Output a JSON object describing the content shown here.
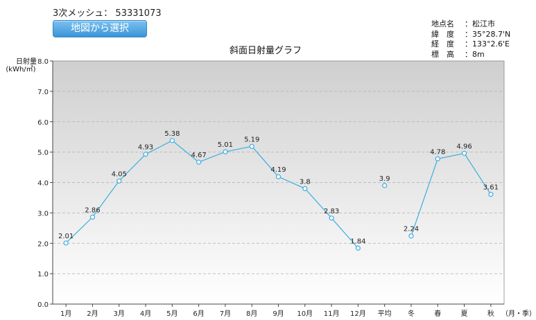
{
  "mesh": {
    "label": "3次メッシュ：",
    "code": "53331073"
  },
  "button": {
    "label": "地図から選択"
  },
  "location": [
    {
      "key": "地点名",
      "value": "松江市"
    },
    {
      "key": "緯　度",
      "value": "35°28.7'N"
    },
    {
      "key": "経　度",
      "value": "133°2.6'E"
    },
    {
      "key": "標　高",
      "value": "8m"
    }
  ],
  "colors": {
    "line": "#3aaee0",
    "grid": "#b0b0b0",
    "plot_top": "#cfcfcf",
    "plot_bottom": "#ffffff"
  },
  "chart_data": {
    "type": "line",
    "title": "斜面日射量グラフ",
    "ylabel": "日射量",
    "yunit": "(kWh/㎡)",
    "xunit": "（月・季）",
    "ylim": [
      0,
      8
    ],
    "yticks": [
      "0.0",
      "1.0",
      "2.0",
      "3.0",
      "4.0",
      "5.0",
      "6.0",
      "7.0",
      "8.0"
    ],
    "categories": [
      "1月",
      "2月",
      "3月",
      "4月",
      "5月",
      "6月",
      "7月",
      "8月",
      "9月",
      "10月",
      "11月",
      "12月",
      "平均",
      "冬",
      "春",
      "夏",
      "秋"
    ],
    "values": [
      2.01,
      2.86,
      4.05,
      4.93,
      5.38,
      4.67,
      5.01,
      5.19,
      4.19,
      3.8,
      2.83,
      1.84,
      3.9,
      2.24,
      4.78,
      4.96,
      3.61
    ],
    "labels": [
      "2.01",
      "2.86",
      "4.05",
      "4.93",
      "5.38",
      "4.67",
      "5.01",
      "5.19",
      "4.19",
      "3.8",
      "2.83",
      "1.84",
      "3.9",
      "2.24",
      "4.78",
      "4.96",
      "3.61"
    ],
    "segments": [
      [
        0,
        11
      ],
      [
        12,
        12
      ],
      [
        13,
        16
      ]
    ],
    "grid": true
  }
}
